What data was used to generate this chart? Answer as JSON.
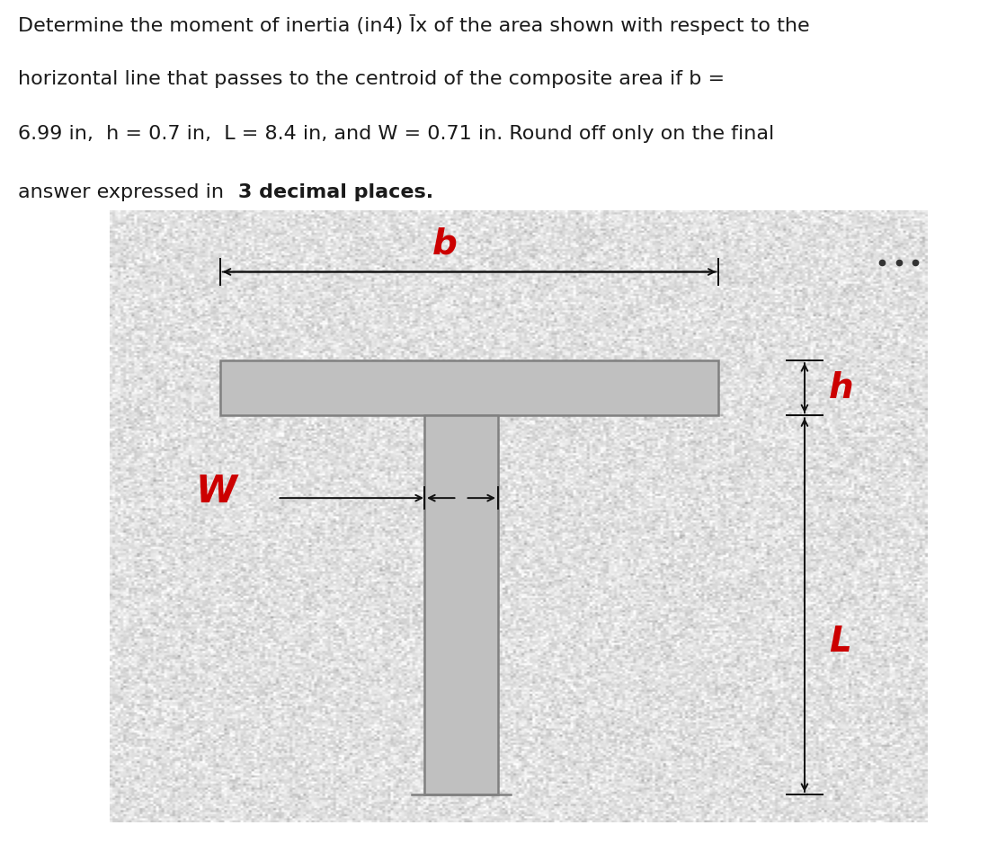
{
  "title_line1": "Determine the moment of inertia (in4) Īx of the area shown with respect to the",
  "title_line2": "horizontal line that passes to the centroid of the composite area if b =",
  "title_line3": "6.99 in,  h = 0.7 in,  L = 8.4 in, and W = 0.71 in. Round off only on the final",
  "title_line4_normal": "answer expressed in ",
  "title_line4_bold": "3 decimal places.",
  "bg_color": "#ffffff",
  "shape_color": "#c0c0c0",
  "shape_edge_color": "#808080",
  "text_color": "#1a1a1a",
  "label_color": "#cc0000",
  "arrow_color": "#111111",
  "dots_color": "#333333",
  "diagram_bg_light": "#d8d8d8",
  "diagram_bg_dark": "#b8b8b8",
  "noise_alpha": 0.18,
  "fontsize_text": 16,
  "fontsize_label": 28
}
